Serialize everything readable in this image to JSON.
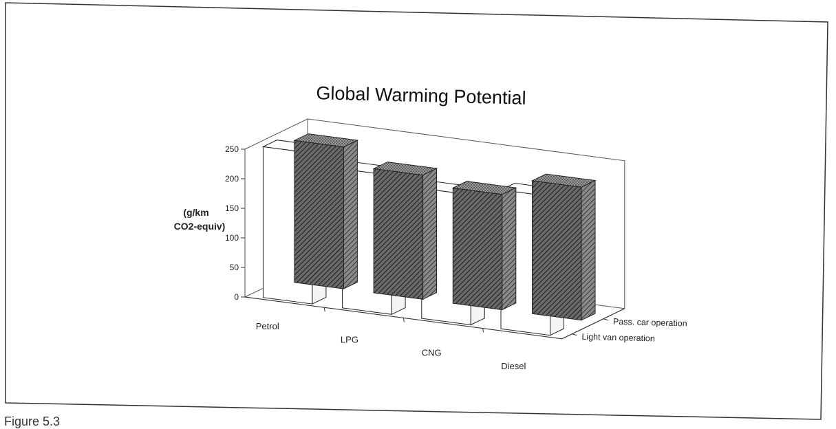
{
  "caption": "Figure 5.3",
  "chart_data": {
    "type": "bar",
    "title": "Global Warming Potential",
    "ylabel": [
      "(g/km",
      "CO2-equiv)"
    ],
    "yticks": [
      "0",
      "50",
      "100",
      "150",
      "200",
      "250"
    ],
    "ylim": [
      0,
      250
    ],
    "categories": [
      "Petrol",
      "LPG",
      "CNG",
      "Diesel"
    ],
    "series": [
      {
        "name": "Pass. car operation",
        "values": [
          240,
          210,
          195,
          225
        ],
        "pattern": "dense-hatched"
      },
      {
        "name": "Light van operation",
        "values": [
          255,
          235,
          220,
          235
        ],
        "pattern": "white"
      }
    ],
    "grid": false,
    "legend": "right"
  }
}
